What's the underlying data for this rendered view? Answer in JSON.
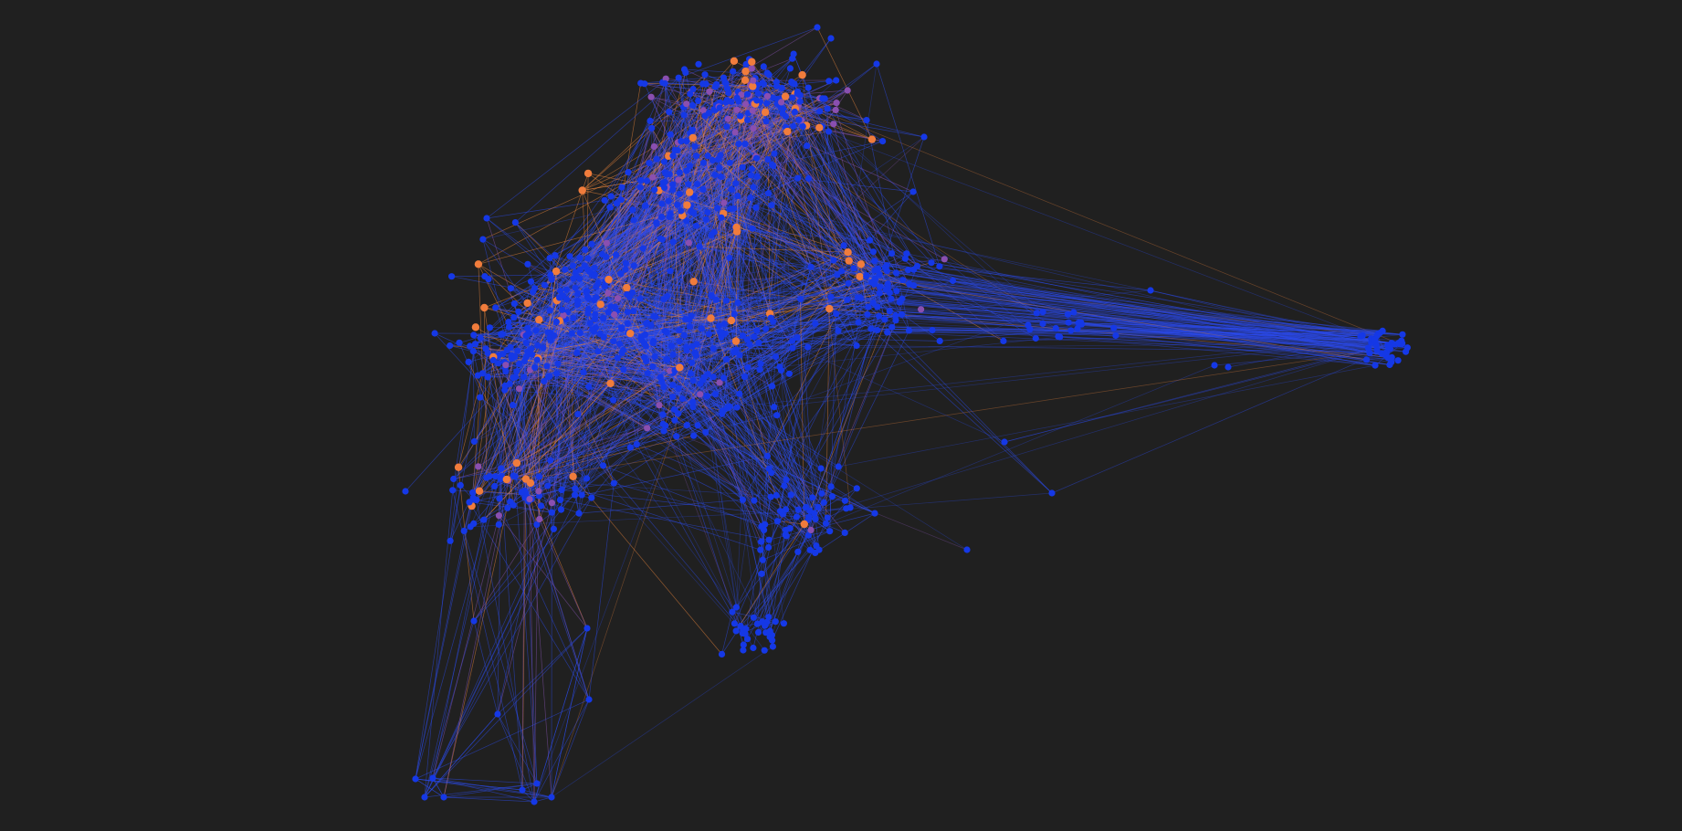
{
  "graph": {
    "type": "network",
    "layout": "force-directed",
    "background_color": "#202020",
    "node_colors": {
      "default": "#1538e6",
      "highlight": "#f07c3c",
      "mixed": "#8a4fb0"
    },
    "edge_colors": {
      "default": "#2c4cf0",
      "highlight": "#f0883c",
      "mixed": "#8a56b8"
    },
    "labels_visible": false,
    "clusters": [
      "top-dense-cluster",
      "left-cluster",
      "center-cluster",
      "lower-center-cluster",
      "right-satellite-cluster",
      "bottom-left-tail"
    ]
  }
}
